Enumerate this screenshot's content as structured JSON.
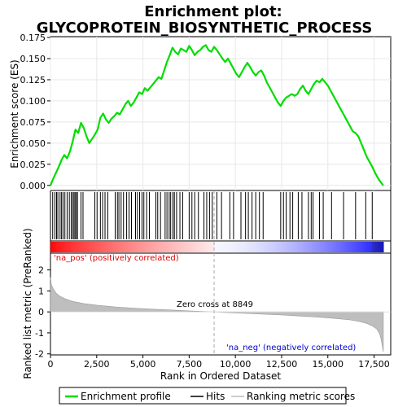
{
  "chart_data": {
    "type": "line",
    "title": "Enrichment plot:\nGLYCOPROTEIN_BIOSYNTHETIC_PROCESS",
    "title_lines": [
      "Enrichment plot:",
      "GLYCOPROTEIN_BIOSYNTHETIC_PROCESS"
    ],
    "es_panel": {
      "ylabel": "Enrichment score (ES)",
      "ylim": [
        -0.006,
        0.176
      ],
      "yticks": [
        0.0,
        0.025,
        0.05,
        0.075,
        0.1,
        0.125,
        0.15,
        0.175
      ],
      "ytick_labels": [
        "0.000",
        "0.025",
        "0.050",
        "0.075",
        "0.100",
        "0.125",
        "0.150",
        "0.175"
      ],
      "grid": true,
      "series": [
        {
          "name": "Enrichment profile",
          "color": "#00dd00",
          "x": [
            0,
            150,
            300,
            450,
            600,
            750,
            900,
            1050,
            1200,
            1350,
            1500,
            1650,
            1800,
            1950,
            2100,
            2250,
            2400,
            2550,
            2700,
            2850,
            3000,
            3150,
            3300,
            3450,
            3600,
            3750,
            3900,
            4050,
            4200,
            4350,
            4500,
            4650,
            4800,
            4950,
            5100,
            5250,
            5400,
            5550,
            5700,
            5850,
            6000,
            6150,
            6300,
            6450,
            6600,
            6750,
            6900,
            7050,
            7200,
            7350,
            7500,
            7650,
            7800,
            7950,
            8100,
            8250,
            8400,
            8550,
            8700,
            8850,
            9000,
            9150,
            9300,
            9450,
            9600,
            9750,
            9900,
            10050,
            10200,
            10350,
            10500,
            10650,
            10800,
            10950,
            11100,
            11250,
            11400,
            11550,
            11700,
            11850,
            12000,
            12150,
            12300,
            12450,
            12600,
            12750,
            12900,
            13050,
            13200,
            13350,
            13500,
            13650,
            13800,
            13950,
            14100,
            14250,
            14400,
            14550,
            14700,
            14850,
            15000,
            15150,
            15300,
            15450,
            15600,
            15750,
            15900,
            16050,
            16200,
            16350,
            16500,
            16650,
            16800,
            16950,
            17100,
            17250,
            17400,
            17550,
            17700,
            17850,
            18000
          ],
          "y": [
            0.0,
            0.008,
            0.015,
            0.022,
            0.03,
            0.036,
            0.032,
            0.04,
            0.052,
            0.066,
            0.062,
            0.074,
            0.068,
            0.058,
            0.05,
            0.055,
            0.06,
            0.066,
            0.08,
            0.085,
            0.078,
            0.074,
            0.079,
            0.082,
            0.086,
            0.084,
            0.09,
            0.096,
            0.1,
            0.094,
            0.098,
            0.104,
            0.11,
            0.108,
            0.115,
            0.112,
            0.116,
            0.12,
            0.124,
            0.128,
            0.126,
            0.136,
            0.146,
            0.154,
            0.163,
            0.158,
            0.155,
            0.162,
            0.16,
            0.158,
            0.165,
            0.16,
            0.154,
            0.158,
            0.16,
            0.164,
            0.166,
            0.16,
            0.158,
            0.164,
            0.16,
            0.155,
            0.15,
            0.146,
            0.15,
            0.144,
            0.138,
            0.132,
            0.128,
            0.134,
            0.14,
            0.145,
            0.14,
            0.134,
            0.13,
            0.134,
            0.136,
            0.13,
            0.122,
            0.116,
            0.11,
            0.104,
            0.098,
            0.094,
            0.1,
            0.104,
            0.106,
            0.108,
            0.106,
            0.108,
            0.114,
            0.118,
            0.112,
            0.108,
            0.114,
            0.12,
            0.124,
            0.122,
            0.126,
            0.122,
            0.118,
            0.112,
            0.106,
            0.1,
            0.094,
            0.088,
            0.082,
            0.076,
            0.07,
            0.064,
            0.062,
            0.058,
            0.05,
            0.042,
            0.034,
            0.028,
            0.022,
            0.015,
            0.009,
            0.004,
            0.0
          ]
        }
      ]
    },
    "hits_panel": {
      "legend_name": "Hits",
      "positions": [
        120,
        240,
        330,
        400,
        520,
        600,
        680,
        780,
        900,
        1020,
        1120,
        1200,
        1270,
        1330,
        1400,
        1460,
        1650,
        1760,
        2400,
        2520,
        2700,
        2820,
        2950,
        3100,
        3500,
        3620,
        3700,
        3820,
        3950,
        4120,
        4250,
        4380,
        4600,
        4700,
        4820,
        4950,
        5050,
        5200,
        5350,
        5700,
        5800,
        5950,
        6200,
        6300,
        6420,
        6500,
        6620,
        6700,
        6820,
        7000,
        7150,
        7500,
        7650,
        7800,
        8000,
        8300,
        8450,
        8600,
        8750,
        9000,
        9250,
        9700,
        9900,
        10300,
        10550,
        10700,
        10900,
        11100,
        11300,
        11500,
        12450,
        12600,
        12750,
        12950,
        13100,
        13400,
        13600,
        13950,
        14100,
        14200,
        14550,
        14750,
        15200,
        15850,
        16500,
        17050,
        17400
      ]
    },
    "ranked_list_panel": {
      "ylabel": "Ranked list metric (PreRanked)",
      "xlabel": "Rank in Ordered Dataset",
      "ylim": [
        -2.05,
        2.8
      ],
      "yticks": [
        -2,
        -1,
        0,
        1,
        2
      ],
      "ytick_labels": [
        "-2",
        "-1",
        "0",
        "1",
        "2"
      ],
      "xlim": [
        0,
        18400
      ],
      "xticks": [
        0,
        2500,
        5000,
        7500,
        10000,
        12500,
        15000,
        17500
      ],
      "xtick_labels": [
        "0",
        "2,500",
        "5,000",
        "7,500",
        "10,000",
        "12,500",
        "15,000",
        "17,500"
      ],
      "metric_curve": {
        "x": [
          0,
          50,
          150,
          300,
          500,
          800,
          1200,
          1800,
          2500,
          3500,
          4500,
          5500,
          6500,
          7500,
          8500,
          8849,
          9500,
          10500,
          11500,
          12500,
          13500,
          14500,
          15500,
          16200,
          16700,
          17100,
          17400,
          17650,
          17800,
          17880,
          17950,
          18000
        ],
        "y": [
          1.65,
          1.3,
          1.1,
          0.9,
          0.75,
          0.62,
          0.5,
          0.4,
          0.32,
          0.24,
          0.18,
          0.13,
          0.09,
          0.05,
          0.01,
          0.0,
          -0.03,
          -0.07,
          -0.11,
          -0.15,
          -0.2,
          -0.25,
          -0.32,
          -0.38,
          -0.46,
          -0.55,
          -0.66,
          -0.82,
          -1.05,
          -1.3,
          -1.65,
          -1.9
        ]
      },
      "zero_cross": 8849,
      "zero_cross_label": "Zero cross at 8849",
      "pos_label": "'na_pos' (positively correlated)",
      "neg_label": "'na_neg' (negatively correlated)"
    },
    "legend": {
      "placement": "bottom",
      "items": [
        {
          "label": "Enrichment profile",
          "color": "#00dd00"
        },
        {
          "label": "Hits",
          "color": "#000000"
        },
        {
          "label": "Ranking metric scores",
          "color": "#bbbbbb"
        }
      ]
    },
    "colors": {
      "profile": "#00dd00",
      "hits": "#000000",
      "metric_fill": "#bebebe",
      "pos_text": "#dd0000",
      "neg_text": "#0000cc",
      "grid": "#e8e8e8",
      "zero_line": "#aaaaaa"
    }
  }
}
